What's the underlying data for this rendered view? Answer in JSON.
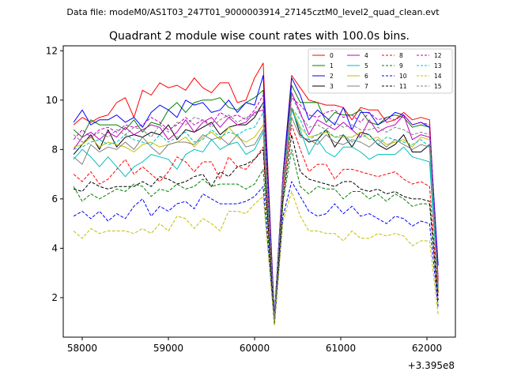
{
  "chart_data": {
    "type": "line",
    "suptitle": "Data file: modeM0/AS1T03_247T01_9000003914_27145cztM0_level2_quad_clean.evt",
    "title": "Quadrant 2 module wise count rates with 100.0s bins.",
    "xlabel": "",
    "ylabel": "",
    "x_offset_label": "+3.395e8",
    "xlim": [
      57780,
      62330
    ],
    "ylim": [
      0.4,
      12.2
    ],
    "xticks": [
      58000,
      59000,
      60000,
      61000,
      62000
    ],
    "xtick_labels": [
      "58000",
      "59000",
      "60000",
      "61000",
      "62000"
    ],
    "yticks": [
      2,
      4,
      6,
      8,
      10,
      12
    ],
    "ytick_labels": [
      "2",
      "4",
      "6",
      "8",
      "10",
      "12"
    ],
    "grid": false,
    "legend_position": "top-right",
    "legend_columns": 4,
    "x": [
      57900,
      58000,
      58100,
      58200,
      58300,
      58400,
      58500,
      58600,
      58700,
      58800,
      58900,
      59000,
      59100,
      59200,
      59300,
      59400,
      59500,
      59600,
      59700,
      59800,
      59900,
      60000,
      60100,
      60230,
      60330,
      60430,
      60530,
      60630,
      60730,
      60830,
      60930,
      61030,
      61130,
      61230,
      61330,
      61430,
      61530,
      61630,
      61730,
      61830,
      61930,
      62030,
      62130
    ],
    "series": [
      {
        "name": "0",
        "color": "#ff0000",
        "dash": "solid",
        "values": [
          9.0,
          9.3,
          9.1,
          9.3,
          9.4,
          9.9,
          10.1,
          9.3,
          10.4,
          10.2,
          10.7,
          10.5,
          10.6,
          10.4,
          10.9,
          10.5,
          10.3,
          10.7,
          10.7,
          9.9,
          10.0,
          10.9,
          11.5,
          1.2,
          7.0,
          11.0,
          10.5,
          10.0,
          9.9,
          9.8,
          9.8,
          9.7,
          9.2,
          9.7,
          9.6,
          9.6,
          9.1,
          9.2,
          9.5,
          9.2,
          9.3,
          9.2,
          2.7
        ]
      },
      {
        "name": "1",
        "color": "#008000",
        "dash": "solid",
        "values": [
          8.8,
          8.5,
          9.2,
          9.0,
          9.0,
          9.0,
          8.8,
          9.2,
          8.7,
          9.1,
          9.0,
          9.6,
          9.9,
          9.5,
          9.9,
          10.0,
          10.0,
          10.1,
          9.7,
          9.6,
          9.9,
          10.1,
          10.4,
          1.3,
          6.9,
          10.6,
          9.9,
          9.9,
          9.9,
          9.1,
          9.5,
          9.4,
          9.4,
          9.6,
          9.1,
          9.0,
          9.3,
          9.4,
          9.3,
          8.9,
          9.0,
          8.9,
          2.6
        ]
      },
      {
        "name": "2",
        "color": "#0000ff",
        "dash": "solid",
        "values": [
          9.1,
          9.6,
          9.0,
          9.2,
          9.2,
          9.4,
          9.1,
          9.3,
          8.9,
          9.5,
          9.8,
          9.6,
          9.3,
          10.0,
          9.8,
          9.9,
          9.5,
          9.6,
          10.0,
          9.5,
          9.9,
          9.8,
          11.0,
          1.2,
          7.0,
          10.9,
          10.2,
          9.2,
          9.6,
          9.3,
          9.0,
          9.7,
          8.8,
          9.5,
          9.5,
          9.0,
          9.2,
          9.5,
          9.4,
          9.0,
          9.1,
          8.9,
          3.3
        ]
      },
      {
        "name": "3",
        "color": "#000000",
        "dash": "solid",
        "values": [
          7.8,
          8.2,
          8.6,
          8.0,
          8.8,
          8.1,
          8.5,
          8.6,
          8.5,
          8.7,
          8.6,
          9.0,
          8.4,
          8.8,
          8.7,
          8.9,
          9.1,
          8.6,
          8.9,
          9.0,
          9.0,
          9.3,
          9.9,
          1.0,
          6.5,
          9.7,
          8.6,
          8.3,
          8.4,
          8.8,
          8.1,
          8.6,
          8.1,
          8.7,
          8.6,
          8.2,
          8.0,
          8.2,
          8.6,
          7.9,
          7.9,
          8.2,
          2.2
        ]
      },
      {
        "name": "4",
        "color": "#bf00bf",
        "dash": "solid",
        "values": [
          8.0,
          8.5,
          8.7,
          8.4,
          8.7,
          8.5,
          8.9,
          8.6,
          8.8,
          9.0,
          8.9,
          8.4,
          8.7,
          9.2,
          8.7,
          9.1,
          9.3,
          8.9,
          9.3,
          9.0,
          9.1,
          9.5,
          9.6,
          1.1,
          6.7,
          10.3,
          9.5,
          8.6,
          9.2,
          9.0,
          8.8,
          9.1,
          8.8,
          8.5,
          9.2,
          8.7,
          8.9,
          9.0,
          9.4,
          8.4,
          8.6,
          8.5,
          2.5
        ]
      },
      {
        "name": "5",
        "color": "#00bfbf",
        "dash": "solid",
        "values": [
          7.6,
          8.0,
          7.7,
          7.3,
          7.7,
          7.3,
          6.9,
          7.3,
          7.5,
          7.8,
          7.7,
          7.6,
          7.2,
          7.8,
          8.0,
          7.9,
          8.4,
          8.0,
          8.2,
          8.3,
          7.8,
          8.0,
          8.7,
          1.0,
          6.5,
          9.6,
          8.8,
          7.8,
          8.4,
          7.9,
          7.7,
          8.1,
          8.1,
          7.9,
          7.6,
          7.8,
          7.8,
          7.8,
          8.1,
          7.7,
          7.6,
          7.5,
          2.3
        ]
      },
      {
        "name": "6",
        "color": "#bfbf00",
        "dash": "solid",
        "values": [
          8.1,
          8.2,
          8.5,
          8.1,
          8.3,
          8.2,
          8.1,
          7.9,
          8.2,
          8.3,
          8.1,
          8.2,
          8.3,
          8.5,
          8.1,
          8.5,
          8.7,
          8.4,
          8.9,
          8.5,
          8.3,
          8.5,
          9.0,
          1.0,
          6.4,
          9.7,
          8.9,
          8.5,
          8.6,
          8.7,
          8.5,
          8.5,
          8.5,
          8.7,
          8.4,
          8.5,
          8.2,
          8.3,
          8.4,
          8.1,
          8.5,
          8.4,
          2.3
        ]
      },
      {
        "name": "7",
        "color": "#808080",
        "dash": "solid",
        "values": [
          7.7,
          7.4,
          8.2,
          7.9,
          8.1,
          8.0,
          8.3,
          8.0,
          8.5,
          8.1,
          7.8,
          8.2,
          8.3,
          8.3,
          8.2,
          8.6,
          8.4,
          8.5,
          8.2,
          8.6,
          8.1,
          8.2,
          8.8,
          1.0,
          6.3,
          9.3,
          8.5,
          8.4,
          8.2,
          8.6,
          8.3,
          8.2,
          8.4,
          8.3,
          8.1,
          8.4,
          8.1,
          8.4,
          8.2,
          8.0,
          8.2,
          8.1,
          2.4
        ]
      },
      {
        "name": "8",
        "color": "#ff0000",
        "dash": "dashed",
        "values": [
          7.0,
          6.7,
          7.1,
          6.6,
          6.8,
          7.2,
          7.6,
          7.0,
          7.3,
          7.0,
          6.7,
          7.1,
          7.7,
          7.5,
          7.1,
          7.5,
          7.5,
          6.8,
          7.7,
          7.3,
          7.2,
          7.6,
          8.1,
          1.0,
          6.3,
          9.0,
          8.0,
          7.1,
          7.4,
          7.4,
          6.8,
          7.2,
          7.2,
          7.1,
          7.0,
          6.9,
          7.0,
          7.1,
          6.8,
          6.6,
          6.7,
          6.5,
          2.1
        ]
      },
      {
        "name": "9",
        "color": "#008000",
        "dash": "dashed",
        "values": [
          6.5,
          5.9,
          6.2,
          6.0,
          6.2,
          6.4,
          6.3,
          6.6,
          6.5,
          6.1,
          6.4,
          6.3,
          6.6,
          6.4,
          6.5,
          6.8,
          6.5,
          6.6,
          6.6,
          6.6,
          6.4,
          6.6,
          7.2,
          0.9,
          5.9,
          8.0,
          6.5,
          6.2,
          6.5,
          6.4,
          6.4,
          6.0,
          6.3,
          6.3,
          6.0,
          6.2,
          5.9,
          6.2,
          6.0,
          5.7,
          5.8,
          5.8,
          1.8
        ]
      },
      {
        "name": "10",
        "color": "#0000ff",
        "dash": "dashed",
        "values": [
          5.3,
          5.5,
          5.2,
          5.5,
          5.1,
          5.4,
          5.2,
          5.7,
          6.0,
          5.3,
          5.7,
          5.5,
          5.8,
          5.9,
          5.6,
          6.2,
          6.0,
          5.8,
          5.8,
          5.8,
          5.9,
          6.1,
          6.5,
          0.9,
          5.3,
          6.7,
          6.1,
          5.5,
          5.3,
          5.4,
          5.8,
          5.4,
          5.7,
          5.3,
          5.4,
          5.2,
          5.0,
          5.3,
          5.2,
          4.9,
          5.1,
          5.0,
          1.6
        ]
      },
      {
        "name": "11",
        "color": "#000000",
        "dash": "dashed",
        "values": [
          6.4,
          6.3,
          6.7,
          6.5,
          6.4,
          6.5,
          6.5,
          6.5,
          6.7,
          6.5,
          6.9,
          6.8,
          6.6,
          6.7,
          6.9,
          7.0,
          6.5,
          7.1,
          6.9,
          7.3,
          7.4,
          7.6,
          8.0,
          1.0,
          6.0,
          8.6,
          7.1,
          6.8,
          6.7,
          6.6,
          6.5,
          6.7,
          6.7,
          6.4,
          6.3,
          6.4,
          6.2,
          6.3,
          6.1,
          6.0,
          6.0,
          5.9,
          1.9
        ]
      },
      {
        "name": "12",
        "color": "#bf00bf",
        "dash": "dashed",
        "values": [
          8.4,
          8.8,
          8.5,
          8.8,
          8.9,
          8.7,
          9.0,
          8.9,
          9.0,
          9.3,
          9.1,
          8.8,
          9.0,
          9.3,
          9.0,
          9.2,
          9.0,
          9.5,
          9.3,
          9.4,
          9.2,
          9.6,
          10.2,
          1.1,
          6.9,
          10.1,
          9.8,
          9.4,
          9.3,
          9.5,
          9.6,
          9.3,
          9.4,
          9.1,
          9.5,
          9.2,
          9.3,
          9.2,
          9.4,
          9.0,
          9.1,
          9.0,
          2.8
        ]
      },
      {
        "name": "13",
        "color": "#00bfbf",
        "dash": "dashed",
        "values": [
          8.0,
          8.1,
          8.3,
          8.4,
          8.2,
          8.3,
          8.6,
          8.4,
          8.3,
          8.2,
          8.6,
          8.3,
          8.5,
          8.7,
          8.3,
          8.4,
          8.8,
          8.5,
          8.7,
          8.6,
          8.8,
          8.9,
          9.5,
          1.1,
          6.6,
          9.7,
          9.2,
          8.4,
          8.6,
          8.8,
          8.5,
          8.6,
          8.3,
          8.5,
          8.6,
          8.2,
          8.5,
          8.4,
          8.3,
          8.2,
          8.4,
          8.1,
          2.4
        ]
      },
      {
        "name": "14",
        "color": "#bfbf00",
        "dash": "dashed",
        "values": [
          4.7,
          4.4,
          4.8,
          4.6,
          4.7,
          4.7,
          4.7,
          4.6,
          4.8,
          4.6,
          5.0,
          4.7,
          5.3,
          5.2,
          4.8,
          5.2,
          5.0,
          4.7,
          5.5,
          5.5,
          5.4,
          5.8,
          6.1,
          0.9,
          5.1,
          6.3,
          5.3,
          4.7,
          4.7,
          4.6,
          4.6,
          4.3,
          4.7,
          4.4,
          4.4,
          4.6,
          4.5,
          4.6,
          4.5,
          4.1,
          4.3,
          4.3,
          1.3
        ]
      },
      {
        "name": "15",
        "color": "#808080",
        "dash": "dashed",
        "values": [
          8.6,
          8.3,
          8.5,
          8.7,
          8.5,
          8.8,
          8.6,
          8.9,
          8.8,
          8.5,
          9.0,
          8.7,
          9.1,
          9.0,
          9.3,
          9.2,
          8.9,
          9.2,
          9.4,
          9.1,
          9.3,
          9.4,
          9.9,
          1.1,
          6.7,
          10.2,
          9.4,
          8.9,
          9.0,
          8.8,
          9.1,
          8.9,
          9.0,
          8.8,
          8.8,
          8.9,
          8.7,
          8.9,
          8.8,
          8.6,
          8.7,
          8.6,
          2.5
        ]
      }
    ]
  }
}
